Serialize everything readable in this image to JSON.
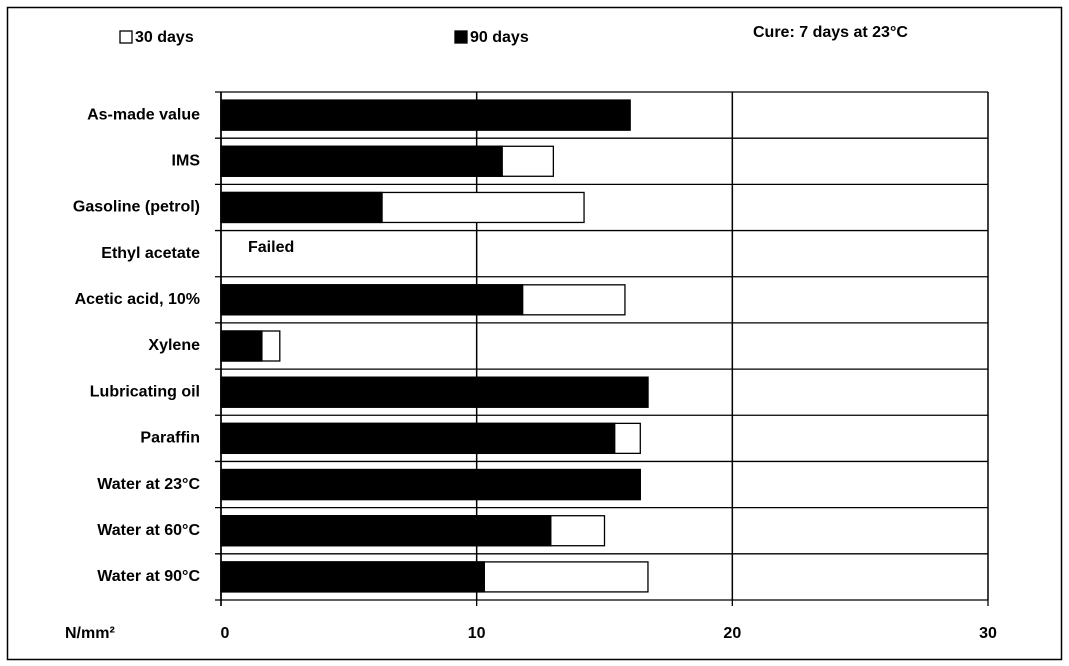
{
  "chart_data": {
    "type": "bar",
    "orientation": "horizontal",
    "categories": [
      "As-made value",
      "IMS",
      "Gasoline (petrol)",
      "Ethyl acetate",
      "Acetic acid, 10%",
      "Xylene",
      "Lubricating oil",
      "Paraffin",
      "Water at 23°C",
      "Water at 60°C",
      "Water at 90°C"
    ],
    "series": [
      {
        "name": "30 days",
        "color": "#ffffff",
        "values": [
          16.0,
          13.0,
          14.2,
          null,
          15.8,
          2.3,
          16.7,
          16.4,
          16.4,
          15.0,
          16.7
        ]
      },
      {
        "name": "90 days",
        "color": "#000000",
        "values": [
          16.0,
          11.0,
          6.3,
          null,
          11.8,
          1.6,
          16.7,
          15.4,
          16.4,
          12.9,
          10.3
        ]
      }
    ],
    "xlabel": "N/mm²",
    "xlim": [
      0,
      30
    ],
    "xticks": [
      0,
      10,
      20,
      30
    ],
    "grid": true,
    "annotations": [
      "Cure: 7 days at 23°C",
      "Failed"
    ]
  }
}
